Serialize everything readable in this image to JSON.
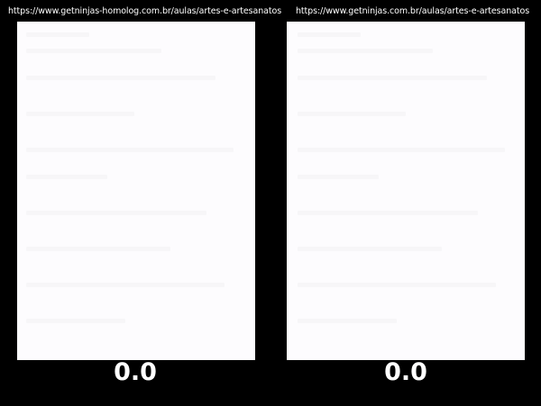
{
  "panels": [
    {
      "url": "https://www.getninjas-homolog.com.br/aulas/artes-e-artesanatos",
      "score": "0.0"
    },
    {
      "url": "https://www.getninjas.com.br/aulas/artes-e-artesanatos",
      "score": "0.0"
    }
  ],
  "colors": {
    "background": "#000000",
    "page": "#fdfcfe",
    "text": "#ffffff"
  }
}
